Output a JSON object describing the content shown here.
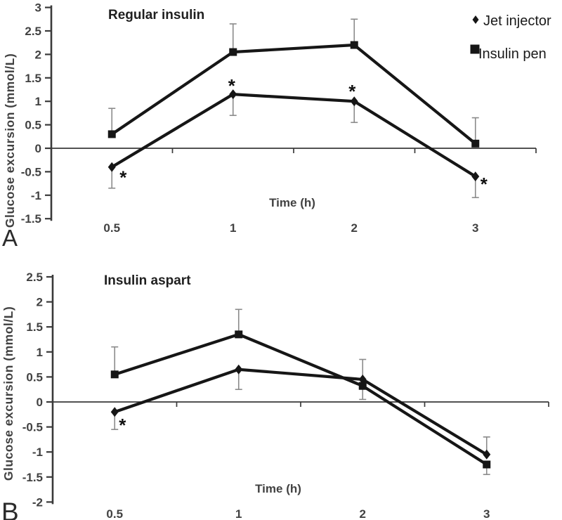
{
  "figure": {
    "background": "#ffffff",
    "series_color": "#161616",
    "axis_color": "#3a3a3a",
    "tick_text_color": "#414141",
    "title_color": "#1f1f1f",
    "error_bar_color": "#8a8a8a"
  },
  "chart_data": [
    {
      "type": "line",
      "panel_label": "A",
      "title": "Regular insulin",
      "xlabel": "Time (h)",
      "ylabel": "Glucose excursion (mmol/L)",
      "categories": [
        "0.5",
        "1",
        "2",
        "3"
      ],
      "ylim": [
        -1.5,
        3
      ],
      "yticks": [
        3,
        2.5,
        2,
        1.5,
        1,
        0.5,
        0,
        -0.5,
        -1,
        -1.5
      ],
      "grid": false,
      "legend_position": "top-right",
      "series": [
        {
          "name": "Jet injector",
          "marker": "diamond",
          "values": [
            -0.4,
            1.15,
            1.0,
            -0.6
          ],
          "error_low": [
            -0.85,
            0.7,
            0.55,
            -1.05
          ],
          "error_high": [
            null,
            null,
            null,
            null
          ],
          "significance": [
            {
              "index": 0,
              "symbol": "*"
            },
            {
              "index": 1,
              "symbol": "*"
            },
            {
              "index": 2,
              "symbol": "*"
            },
            {
              "index": 3,
              "symbol": "*"
            }
          ]
        },
        {
          "name": "Insulin pen",
          "marker": "square",
          "values": [
            0.3,
            2.05,
            2.2,
            0.1
          ],
          "error_low": [
            null,
            null,
            null,
            null
          ],
          "error_high": [
            0.85,
            2.65,
            2.75,
            0.65
          ],
          "significance": []
        }
      ]
    },
    {
      "type": "line",
      "panel_label": "B",
      "title": "Insulin aspart",
      "xlabel": "Time (h)",
      "ylabel": "Glucose excursion (mmol/L)",
      "categories": [
        "0.5",
        "1",
        "2",
        "3"
      ],
      "ylim": [
        -2,
        2.5
      ],
      "yticks": [
        2.5,
        2,
        1.5,
        1,
        0.5,
        0,
        -0.5,
        -1,
        -1.5,
        -2
      ],
      "grid": false,
      "legend_position": null,
      "series": [
        {
          "name": "Jet injector",
          "marker": "diamond",
          "values": [
            -0.2,
            0.65,
            0.45,
            -1.05
          ],
          "error_low": [
            -0.55,
            0.25,
            null,
            null
          ],
          "error_high": [
            null,
            null,
            0.85,
            -0.7
          ],
          "significance": [
            {
              "index": 0,
              "symbol": "*"
            }
          ]
        },
        {
          "name": "Insulin pen",
          "marker": "square",
          "values": [
            0.55,
            1.35,
            0.32,
            -1.25
          ],
          "error_low": [
            null,
            null,
            0.05,
            -1.45
          ],
          "error_high": [
            1.1,
            1.85,
            null,
            null
          ],
          "significance": []
        }
      ]
    }
  ]
}
